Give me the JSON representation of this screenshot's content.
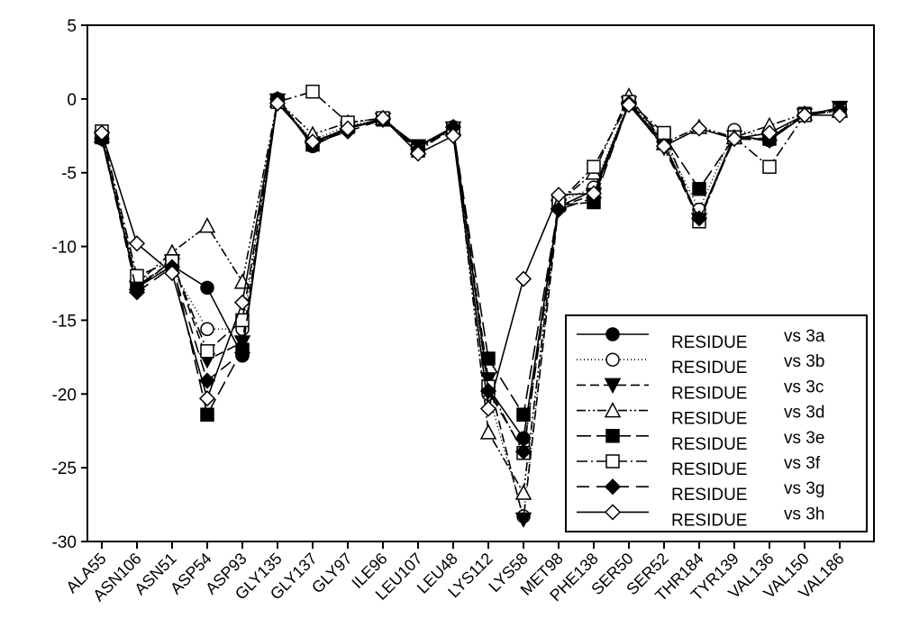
{
  "chart_data": {
    "type": "line",
    "title": "",
    "xlabel": "",
    "ylabel": "",
    "ylim": [
      -30,
      5
    ],
    "yticks": [
      5,
      0,
      -5,
      -10,
      -15,
      -20,
      -25,
      -30
    ],
    "grid": false,
    "legend_position": "bottom-right",
    "categories": [
      "ALA55",
      "ASN106",
      "ASN51",
      "ASP54",
      "ASP93",
      "GLY135",
      "GLY137",
      "GLY97",
      "ILE96",
      "LEU107",
      "LEU48",
      "LYS112",
      "LYS58",
      "MET98",
      "PHE138",
      "SER50",
      "SER52",
      "THR184",
      "TYR139",
      "VAL136",
      "VAL150",
      "VAL186"
    ],
    "series": [
      {
        "name": "RESIDUE",
        "suffix": "vs 3a",
        "marker": "circle-filled",
        "dash": "",
        "values": [
          -2.7,
          -12.8,
          -11.3,
          -12.8,
          -17.4,
          0,
          -3.2,
          -2.0,
          -1.4,
          -3.2,
          -1.9,
          -19.6,
          -23.0,
          -7.3,
          -6.2,
          -0.3,
          -3.0,
          -8.1,
          -2.5,
          -2.8,
          -1.1,
          -0.6
        ]
      },
      {
        "name": "RESIDUE",
        "suffix": "vs 3b",
        "marker": "circle-open",
        "dash": "1,3",
        "values": [
          -2.5,
          -12.3,
          -11.5,
          -15.6,
          -15.6,
          -0.2,
          -2.8,
          -1.8,
          -1.4,
          -3.4,
          -2.0,
          -20.0,
          -28.3,
          -7.0,
          -6.0,
          -0.2,
          -2.8,
          -7.5,
          -2.1,
          -2.6,
          -1.1,
          -0.8
        ]
      },
      {
        "name": "RESIDUE",
        "suffix": "vs 3c",
        "marker": "triangle-down-filled",
        "dash": "10,5",
        "values": [
          -2.7,
          -12.8,
          -11.0,
          -17.7,
          -16.5,
          -0.1,
          -3.0,
          -2.0,
          -1.4,
          -3.2,
          -2.0,
          -19.0,
          -28.5,
          -7.3,
          -6.5,
          -0.3,
          -3.3,
          -8.2,
          -2.6,
          -2.8,
          -1.1,
          -0.6
        ]
      },
      {
        "name": "RESIDUE",
        "suffix": "vs 3d",
        "marker": "triangle-up-open",
        "dash": "10,3,2,3,2,3",
        "values": [
          -2.5,
          -12.5,
          -10.4,
          -8.6,
          -12.4,
          -0.1,
          -2.4,
          -1.6,
          -1.3,
          -3.3,
          -2.0,
          -22.6,
          -26.7,
          -7.0,
          -5.0,
          0.2,
          -3.0,
          -1.9,
          -2.6,
          -1.8,
          -1.0,
          -0.8
        ]
      },
      {
        "name": "RESIDUE",
        "suffix": "vs 3e",
        "marker": "square-filled",
        "dash": "16,6",
        "values": [
          -2.6,
          -12.7,
          -11.0,
          -21.4,
          -17.0,
          -0.1,
          -3.1,
          -1.9,
          -1.4,
          -3.2,
          -2.0,
          -17.6,
          -21.4,
          -7.2,
          -7.0,
          -0.3,
          -2.5,
          -6.1,
          -2.6,
          -2.7,
          -1.0,
          -0.7
        ]
      },
      {
        "name": "RESIDUE",
        "suffix": "vs 3f",
        "marker": "square-open",
        "dash": "12,4,2,4",
        "values": [
          -2.2,
          -12.0,
          -11.0,
          -17.1,
          -15.0,
          -0.2,
          0.5,
          -1.6,
          -1.3,
          -3.5,
          -2.0,
          -19.5,
          -24.0,
          -7.0,
          -4.6,
          -0.2,
          -2.3,
          -8.3,
          -2.6,
          -4.6,
          -1.1,
          -0.8
        ]
      },
      {
        "name": "RESIDUE",
        "suffix": "vs 3g",
        "marker": "diamond-filled",
        "dash": "14,8",
        "values": [
          -2.7,
          -13.1,
          -11.4,
          -19.1,
          -17.2,
          0,
          -3.0,
          -2.2,
          -1.4,
          -3.4,
          -1.9,
          -19.8,
          -23.9,
          -7.5,
          -6.7,
          -0.3,
          -3.2,
          -8.1,
          -2.7,
          -2.8,
          -1.1,
          -0.7
        ]
      },
      {
        "name": "RESIDUE",
        "suffix": "vs 3h",
        "marker": "diamond-open",
        "dash": "",
        "values": [
          -2.3,
          -9.8,
          -11.8,
          -20.3,
          -13.8,
          -0.3,
          -2.9,
          -2.0,
          -1.3,
          -3.7,
          -2.5,
          -21.0,
          -12.2,
          -6.5,
          -6.4,
          -0.4,
          -3.2,
          -2.0,
          -2.7,
          -2.3,
          -1.1,
          -1.1
        ]
      }
    ]
  }
}
